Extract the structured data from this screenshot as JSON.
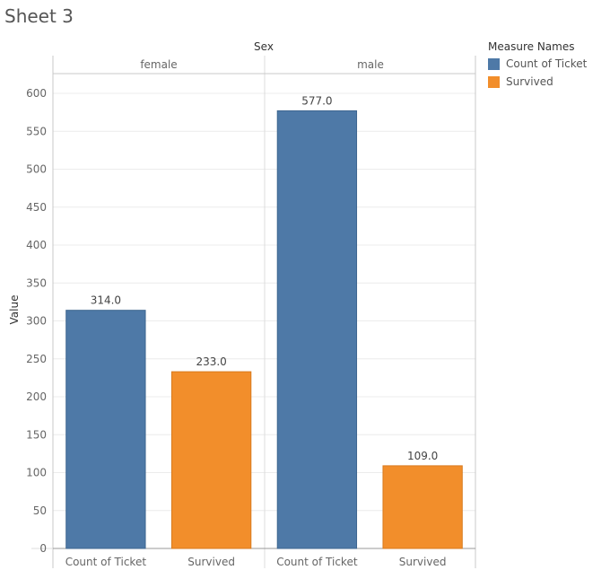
{
  "sheet": {
    "title": "Sheet 3"
  },
  "legend": {
    "title": "Measure Names",
    "items": [
      {
        "label": "Count of Ticket",
        "color": "#4e79a7"
      },
      {
        "label": "Survived",
        "color": "#f28e2b"
      }
    ]
  },
  "chart_data": {
    "type": "bar",
    "column_header_title": "Sex",
    "panels": [
      "female",
      "male"
    ],
    "categories": [
      "Count of Ticket",
      "Survived"
    ],
    "series": [
      {
        "name": "Count of Ticket",
        "color": "#4e79a7",
        "values": [
          314.0,
          577.0
        ]
      },
      {
        "name": "Survived",
        "color": "#f28e2b",
        "values": [
          233.0,
          109.0
        ]
      }
    ],
    "data_labels": [
      [
        "314.0",
        "233.0"
      ],
      [
        "577.0",
        "109.0"
      ]
    ],
    "ylabel": "Value",
    "yticks": [
      0,
      50,
      100,
      150,
      200,
      250,
      300,
      350,
      400,
      450,
      500,
      550,
      600
    ],
    "ylim": [
      0,
      600
    ],
    "grid": true,
    "legend_position": "right"
  }
}
